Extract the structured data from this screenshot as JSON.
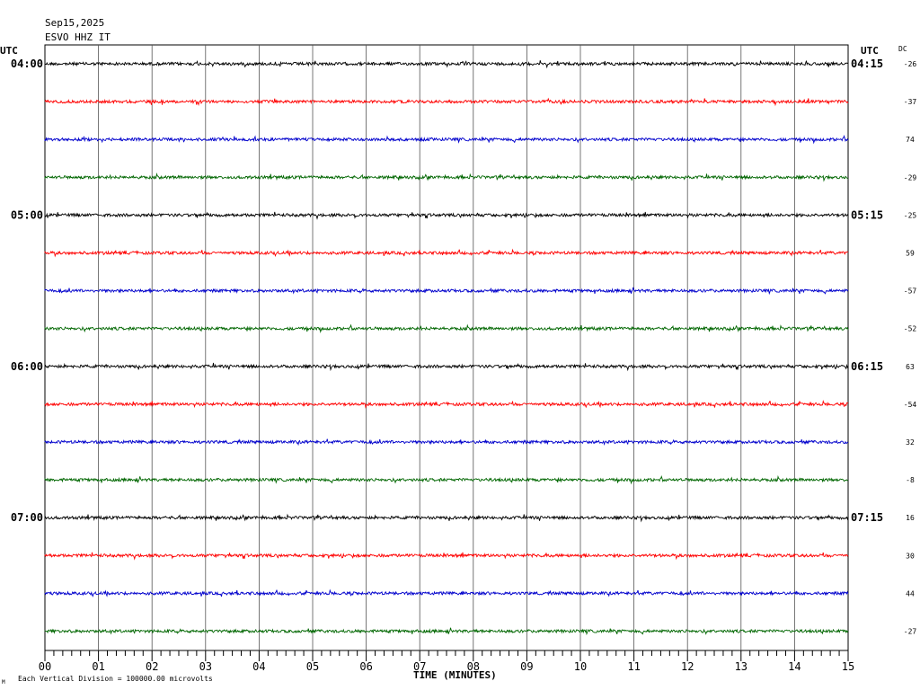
{
  "header": {
    "date": "Sep15,2025",
    "station": "ESVO HHZ IT"
  },
  "left_axis": {
    "label": "UTC"
  },
  "right_axis": {
    "label": "UTC",
    "dc_label": "DC"
  },
  "footer": {
    "note": "Each Vertical Division = 100000.00 microvolts",
    "mark": "M"
  },
  "chart_data": {
    "type": "line",
    "title": "ESVO HHZ IT",
    "date": "Sep15,2025",
    "xlabel": "TIME (MINUTES)",
    "xlim": [
      0,
      15
    ],
    "x_tick_labels": [
      "00",
      "01",
      "02",
      "03",
      "04",
      "05",
      "06",
      "07",
      "08",
      "09",
      "10",
      "11",
      "12",
      "13",
      "14",
      "15"
    ],
    "left_time_labels": [
      {
        "row": 0,
        "text": "04:00"
      },
      {
        "row": 4,
        "text": "05:00"
      },
      {
        "row": 8,
        "text": "06:00"
      },
      {
        "row": 12,
        "text": "07:00"
      }
    ],
    "right_time_labels": [
      {
        "row": 0,
        "text": "04:15"
      },
      {
        "row": 4,
        "text": "05:15"
      },
      {
        "row": 8,
        "text": "06:15"
      },
      {
        "row": 12,
        "text": "07:15"
      }
    ],
    "trace_colors": [
      "#000000",
      "#ff0000",
      "#0000cc",
      "#006600"
    ],
    "dc_offsets": [
      "-26",
      "-37",
      "74",
      "-29",
      "-25",
      "59",
      "-57",
      "-52",
      "63",
      "-54",
      "32",
      "-8",
      "16",
      "30",
      "44",
      "-27"
    ],
    "rows": 16,
    "minutes_per_row": 15
  }
}
